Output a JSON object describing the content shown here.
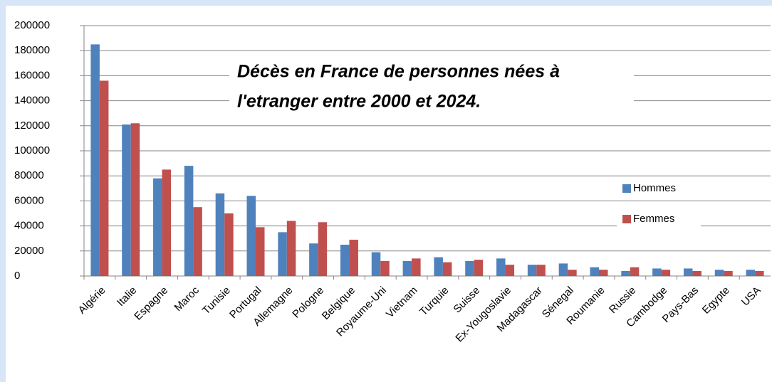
{
  "chart_data": {
    "type": "bar",
    "title": [
      "Décès en France de personnes nées à",
      "l'etranger entre 2000 et 2024."
    ],
    "categories": [
      "Algérie",
      "Italie",
      "Espagne",
      "Maroc",
      "Tunisie",
      "Portugal",
      "Allemagne",
      "Pologne",
      "Belgique",
      "Royaume-Uni",
      "Vietnam",
      "Turquie",
      "Suisse",
      "Ex-Yougoslavie",
      "Madagascar",
      "Sénegal",
      "Roumanie",
      "Russie",
      "Cambodge",
      "Pays-Bas",
      "Egypte",
      "USA"
    ],
    "series": [
      {
        "name": "Hommes",
        "color": "#4f81bd",
        "values": [
          185000,
          121000,
          78000,
          88000,
          66000,
          64000,
          35000,
          26000,
          25000,
          19000,
          12000,
          15000,
          12000,
          14000,
          9000,
          10000,
          7000,
          4000,
          6000,
          6000,
          5000,
          5000
        ]
      },
      {
        "name": "Femmes",
        "color": "#c0504d",
        "values": [
          156000,
          122000,
          85000,
          55000,
          50000,
          39000,
          44000,
          43000,
          29000,
          12000,
          14000,
          11000,
          13000,
          9000,
          9000,
          5000,
          5000,
          7000,
          5000,
          4000,
          4000,
          4000
        ]
      }
    ],
    "ylim": [
      0,
      200000
    ],
    "yticks": [
      0,
      20000,
      40000,
      60000,
      80000,
      100000,
      120000,
      140000,
      160000,
      180000,
      200000
    ],
    "grid": true
  }
}
